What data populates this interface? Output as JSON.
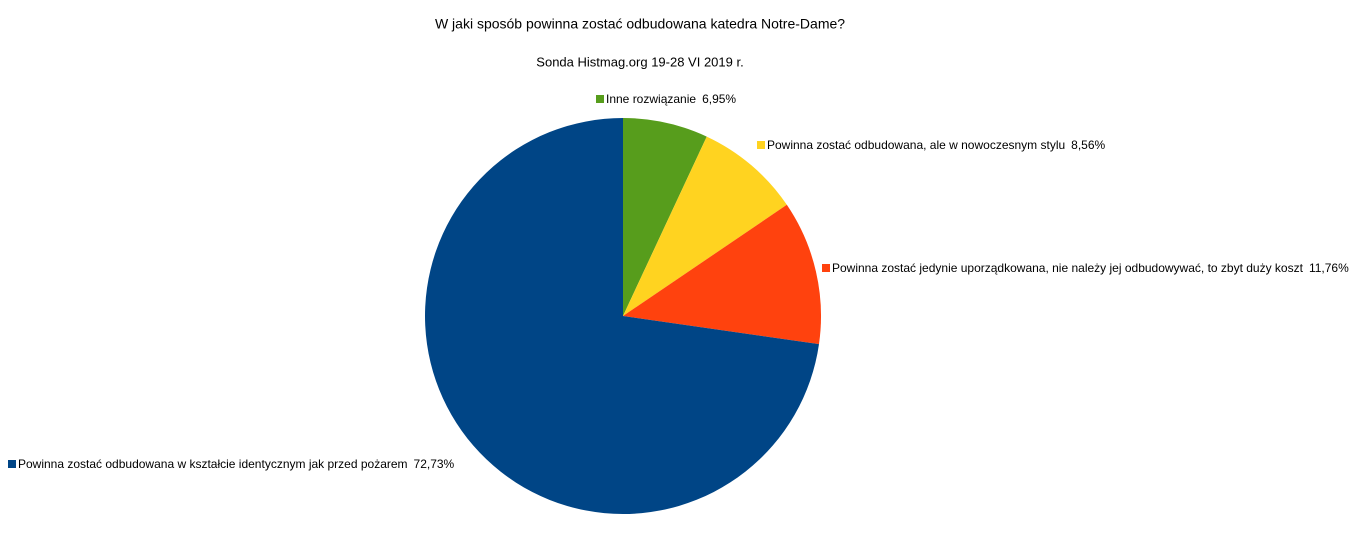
{
  "chart_data": {
    "type": "pie",
    "title": "W jaki sposób powinna zostać odbudowana katedra Notre-Dame?",
    "subtitle": "Sonda Histmag.org 19-28 VI 2019 r.",
    "categories": [
      "Inne rozwiązanie",
      "Powinna zostać odbudowana, ale w nowoczesnym stylu",
      "Powinna zostać jedynie uporządkowana, nie należy jej odbudowywać, to zbyt duży koszt",
      "Powinna zostać odbudowana w kształcie identycznym jak przed pożarem"
    ],
    "values": [
      6.95,
      8.56,
      11.76,
      72.73
    ],
    "value_labels": [
      "6,95%",
      "8,56%",
      "11,76%",
      "72,73%"
    ],
    "colors": [
      "#579d1c",
      "#ffd320",
      "#ff420e",
      "#004586"
    ]
  }
}
